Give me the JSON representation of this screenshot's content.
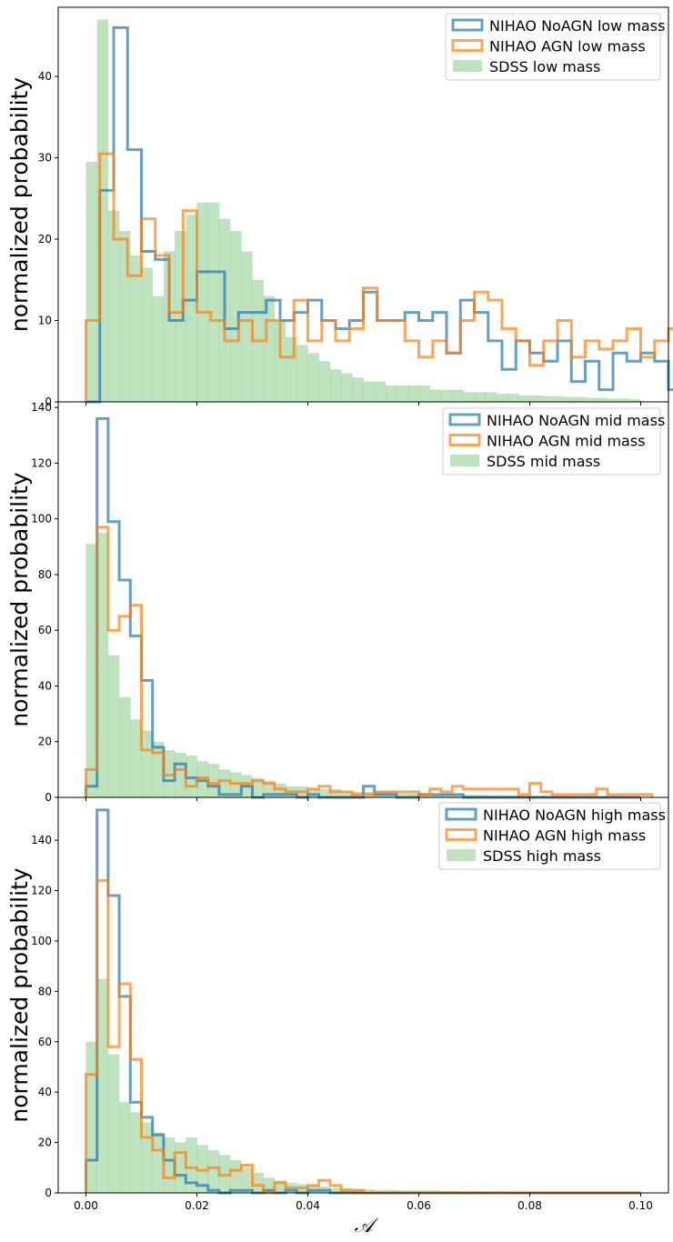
{
  "figure": {
    "xlabel": "𝒜"
  },
  "chart_data": [
    {
      "type": "histogram",
      "panel": "low mass",
      "ylabel": "normalized probability",
      "xlim": [
        -0.005,
        0.105
      ],
      "ylim": [
        0,
        48.5
      ],
      "yticks": [
        0,
        10,
        20,
        30,
        40
      ],
      "xticks": [
        0.0,
        0.02,
        0.04,
        0.06,
        0.08,
        0.1
      ],
      "xtick_labels": [
        "0.00",
        "0.02",
        "0.04",
        "0.06",
        "0.08",
        "0.10"
      ],
      "show_xtick_labels": false,
      "legend_position": "top-right",
      "series": [
        {
          "name": "NIHAO NoAGN low mass",
          "style": "step",
          "color": "#1f77b4",
          "bin_start": 0.0,
          "bin_width": 0.0025,
          "values": [
            0,
            26,
            46,
            31,
            18.5,
            17.5,
            10,
            12.5,
            16,
            16,
            9,
            11,
            11,
            12.5,
            10,
            11,
            12.5,
            10,
            9,
            10,
            13.5,
            10,
            10,
            11,
            10,
            11,
            6,
            12.5,
            11,
            7.5,
            4,
            7.5,
            6,
            5,
            7.5,
            2.5,
            5,
            1.5,
            6,
            5,
            6,
            5,
            1.5,
            1.5,
            0.5,
            0,
            1.5,
            0
          ]
        },
        {
          "name": "NIHAO AGN low mass",
          "style": "step",
          "color": "#ff7f0e",
          "bin_start": 0.0,
          "bin_width": 0.0025,
          "values": [
            10,
            30.5,
            20,
            15.5,
            22.5,
            18,
            11,
            23.5,
            11,
            10,
            7.5,
            10,
            7.5,
            10,
            5.5,
            12.5,
            7.5,
            10,
            7.5,
            9,
            14,
            10,
            10,
            7.5,
            5.5,
            7.5,
            6,
            10,
            13.5,
            12.5,
            9,
            7.5,
            4.5,
            7.5,
            10,
            5.5,
            7.5,
            6.5,
            7.5,
            9,
            5.5,
            7.5,
            9,
            3.5,
            7.5,
            9,
            4.5,
            0
          ]
        },
        {
          "name": "SDSS low mass",
          "style": "bar",
          "color": "#2ca02c",
          "bin_start": 0.0,
          "bin_width": 0.002,
          "values": [
            29.5,
            47,
            23.5,
            21,
            18,
            16.5,
            13,
            18.5,
            21,
            23,
            24.5,
            24.5,
            22.5,
            21,
            18.5,
            15,
            13,
            10,
            8,
            7,
            6,
            5,
            4,
            3.5,
            3,
            2.5,
            2.5,
            2,
            2,
            2,
            2,
            1.5,
            1.5,
            1.5,
            1.2,
            1.2,
            1.2,
            1,
            1,
            0.8,
            0.8,
            0.7,
            0.7,
            0.6,
            0.6,
            0.5,
            0.5,
            0.4,
            0.4,
            0.3
          ]
        }
      ]
    },
    {
      "type": "histogram",
      "panel": "mid mass",
      "ylabel": "normalized probability",
      "xlim": [
        -0.005,
        0.105
      ],
      "ylim": [
        0,
        142
      ],
      "yticks": [
        0,
        20,
        40,
        60,
        80,
        100,
        120,
        140
      ],
      "xticks": [
        0.0,
        0.02,
        0.04,
        0.06,
        0.08,
        0.1
      ],
      "xtick_labels": [
        "0.00",
        "0.02",
        "0.04",
        "0.06",
        "0.08",
        "0.10"
      ],
      "show_xtick_labels": false,
      "legend_position": "top-right",
      "series": [
        {
          "name": "NIHAO NoAGN mid mass",
          "style": "step",
          "color": "#1f77b4",
          "bin_start": 0.0,
          "bin_width": 0.002,
          "values": [
            4,
            136,
            99,
            78,
            58,
            42,
            18,
            6,
            12,
            7,
            6,
            4,
            1,
            1,
            4,
            0,
            1,
            1,
            1,
            0,
            1,
            0,
            0,
            0,
            0,
            4,
            1,
            1,
            0,
            0,
            1,
            1,
            1,
            1,
            0,
            0,
            0,
            0,
            0,
            0,
            0,
            0,
            0,
            0,
            0,
            0,
            0,
            0,
            0,
            0
          ]
        },
        {
          "name": "NIHAO AGN mid mass",
          "style": "step",
          "color": "#ff7f0e",
          "bin_start": 0.0,
          "bin_width": 0.002,
          "values": [
            10,
            97,
            60,
            65,
            69,
            17,
            16,
            8,
            10,
            4,
            7,
            5,
            6,
            5,
            5,
            6,
            5,
            3,
            2,
            2,
            3,
            4,
            2,
            2,
            1,
            1,
            2,
            2,
            2,
            2,
            1,
            3,
            2,
            4,
            3,
            3,
            3,
            3,
            3,
            1,
            5,
            2,
            1,
            1,
            1,
            1,
            3,
            1,
            1,
            1,
            1
          ]
        },
        {
          "name": "SDSS mid mass",
          "style": "bar",
          "color": "#2ca02c",
          "bin_start": 0.0,
          "bin_width": 0.002,
          "values": [
            91,
            95,
            51,
            36,
            28,
            24,
            20,
            17,
            16,
            15,
            13,
            12,
            10,
            9,
            8,
            7,
            6,
            5,
            4,
            4,
            3,
            3,
            3,
            2,
            2,
            2,
            2,
            2,
            1.5,
            1.5,
            1.5,
            1,
            1,
            1,
            1,
            1,
            0.8,
            0.8,
            0.8,
            0.6,
            0.6,
            0.6,
            0.5,
            0.5,
            0.4,
            0.4,
            0.3,
            0.3,
            0.3,
            0.2
          ]
        }
      ]
    },
    {
      "type": "histogram",
      "panel": "high mass",
      "ylabel": "normalized probability",
      "xlim": [
        -0.005,
        0.105
      ],
      "ylim": [
        0,
        157
      ],
      "yticks": [
        0,
        20,
        40,
        60,
        80,
        100,
        120,
        140
      ],
      "xticks": [
        0.0,
        0.02,
        0.04,
        0.06,
        0.08,
        0.1
      ],
      "xtick_labels": [
        "0.00",
        "0.02",
        "0.04",
        "0.06",
        "0.08",
        "0.10"
      ],
      "show_xtick_labels": true,
      "legend_position": "top-right",
      "series": [
        {
          "name": "NIHAO NoAGN high mass",
          "style": "step",
          "color": "#1f77b4",
          "bin_start": 0.0,
          "bin_width": 0.002,
          "values": [
            13,
            152,
            118,
            78,
            36,
            30,
            23,
            13,
            7,
            4,
            3,
            1,
            0,
            1,
            1,
            0,
            1,
            0,
            1,
            0,
            1,
            1,
            0,
            0,
            0,
            0,
            0,
            0,
            0,
            0,
            0,
            0,
            0,
            0,
            0,
            0,
            0,
            0,
            0,
            0,
            0,
            0,
            0,
            0,
            0,
            0,
            0,
            0,
            0,
            0
          ]
        },
        {
          "name": "NIHAO AGN high mass",
          "style": "step",
          "color": "#ff7f0e",
          "bin_start": 0.0,
          "bin_width": 0.002,
          "values": [
            47,
            124,
            58,
            83,
            53,
            22,
            17,
            6,
            16,
            10,
            9,
            10,
            7,
            9,
            11,
            3,
            0,
            4,
            2,
            2,
            3,
            5,
            3,
            1,
            1,
            0,
            0,
            0,
            0,
            0,
            0,
            0,
            0,
            0,
            0,
            0,
            0,
            0,
            0,
            0,
            0,
            0,
            0,
            0,
            0,
            0,
            0,
            0,
            0,
            0
          ]
        },
        {
          "name": "SDSS high mass",
          "style": "bar",
          "color": "#2ca02c",
          "bin_start": 0.0,
          "bin_width": 0.002,
          "values": [
            60,
            85,
            55,
            36,
            32,
            28,
            24,
            22,
            20,
            22,
            19,
            17,
            15,
            13,
            10,
            8,
            6,
            5,
            4,
            3.5,
            3,
            2.5,
            2,
            2,
            1.5,
            1.5,
            1.2,
            1.2,
            1,
            1,
            1,
            1,
            0.8,
            0.8,
            0.6,
            0.6,
            0.5,
            0.5,
            0.4,
            0.4,
            0.3,
            0.3,
            0.3,
            0.2,
            0.2,
            0.2,
            0.2,
            0.2,
            0.2,
            0.2
          ]
        }
      ]
    }
  ]
}
